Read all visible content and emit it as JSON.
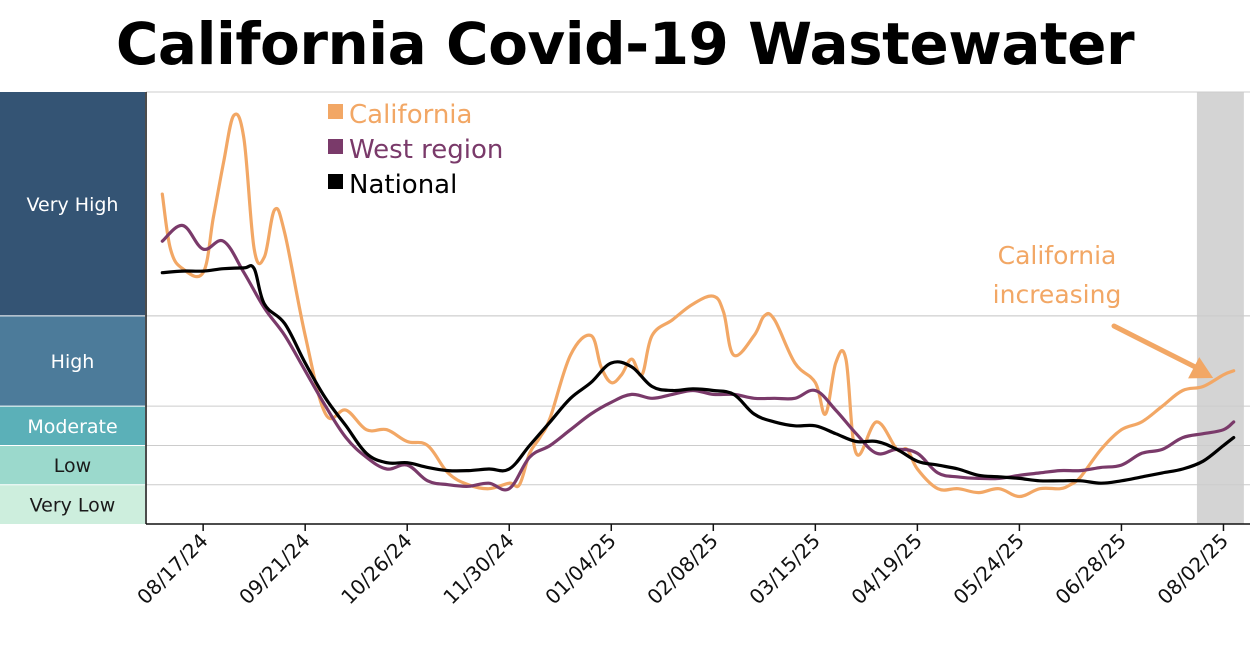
{
  "chart_data": {
    "type": "line",
    "title": "California Covid-19 Wastewater",
    "xlabel": "",
    "ylabel": "",
    "ylim": [
      0,
      5.5
    ],
    "x_tick_labels": [
      "08/17/24",
      "09/21/24",
      "10/26/24",
      "11/30/24",
      "01/04/25",
      "02/08/25",
      "03/15/25",
      "04/19/25",
      "05/24/25",
      "06/28/25",
      "08/02/25"
    ],
    "x_tick_weeks": [
      0,
      5,
      10,
      15,
      20,
      25,
      30,
      35,
      40,
      45,
      50
    ],
    "x_range_weeks": [
      -2.8,
      51.3
    ],
    "levels": [
      {
        "name": "Very Low",
        "from": 0,
        "to": 0.5,
        "color": "#cdeedd",
        "text_color": "#1a1a1a"
      },
      {
        "name": "Low",
        "from": 0.5,
        "to": 1.0,
        "color": "#9bd9cc",
        "text_color": "#1a1a1a"
      },
      {
        "name": "Moderate",
        "from": 1.0,
        "to": 1.5,
        "color": "#5bb0b8",
        "text_color": "#ffffff"
      },
      {
        "name": "High",
        "from": 1.5,
        "to": 2.65,
        "color": "#4c7b9a",
        "text_color": "#ffffff"
      },
      {
        "name": "Very High",
        "from": 2.65,
        "to": 5.5,
        "color": "#345474",
        "text_color": "#ffffff"
      }
    ],
    "series": [
      {
        "name": "California",
        "color": "#f2a765",
        "width": 3.2,
        "x": [
          -2,
          -1.6,
          -1,
          0,
          0.5,
          1,
          1.5,
          2,
          2.5,
          3,
          3.5,
          4,
          5,
          6,
          7,
          8,
          9,
          10,
          11,
          12,
          13,
          14,
          15,
          15.5,
          16,
          16.5,
          17,
          18,
          19,
          19.5,
          20,
          20.5,
          21,
          21.5,
          22,
          23,
          24,
          25,
          25.5,
          26,
          27,
          27.5,
          28,
          29,
          30,
          30.5,
          31,
          31.5,
          32,
          33,
          34,
          34.5,
          35,
          36,
          37,
          38,
          39,
          40,
          41,
          42,
          42.5,
          43,
          44,
          45,
          46,
          47,
          48,
          49,
          50,
          50.5
        ],
        "y": [
          4.2,
          3.5,
          3.25,
          3.2,
          3.9,
          4.6,
          5.2,
          4.9,
          3.5,
          3.4,
          4.0,
          3.7,
          2.4,
          1.4,
          1.45,
          1.2,
          1.2,
          1.05,
          1.0,
          0.65,
          0.5,
          0.45,
          0.52,
          0.5,
          0.9,
          1.1,
          1.35,
          2.15,
          2.4,
          2.0,
          1.8,
          1.9,
          2.1,
          1.9,
          2.4,
          2.6,
          2.8,
          2.9,
          2.7,
          2.15,
          2.4,
          2.65,
          2.6,
          2.05,
          1.8,
          1.4,
          2.05,
          2.1,
          0.9,
          1.3,
          0.95,
          0.95,
          0.7,
          0.45,
          0.45,
          0.4,
          0.45,
          0.35,
          0.45,
          0.45,
          0.5,
          0.6,
          0.95,
          1.2,
          1.3,
          1.5,
          1.7,
          1.75,
          1.9,
          1.95
        ]
      },
      {
        "name": "West region",
        "color": "#7a3a6a",
        "width": 3.2,
        "x": [
          -2,
          -1,
          0,
          1,
          2,
          3,
          4,
          5,
          6,
          7,
          8,
          9,
          10,
          11,
          12,
          13,
          14,
          15,
          16,
          17,
          18,
          19,
          20,
          21,
          22,
          23,
          24,
          25,
          26,
          27,
          28,
          29,
          30,
          31,
          32,
          33,
          34,
          35,
          36,
          37,
          38,
          39,
          40,
          41,
          42,
          43,
          44,
          45,
          46,
          47,
          48,
          49,
          50,
          50.5
        ],
        "y": [
          3.6,
          3.8,
          3.5,
          3.6,
          3.2,
          2.75,
          2.4,
          1.95,
          1.5,
          1.1,
          0.85,
          0.7,
          0.75,
          0.55,
          0.5,
          0.48,
          0.52,
          0.45,
          0.85,
          1.0,
          1.2,
          1.4,
          1.55,
          1.65,
          1.6,
          1.65,
          1.7,
          1.65,
          1.65,
          1.6,
          1.6,
          1.6,
          1.7,
          1.45,
          1.15,
          0.9,
          0.95,
          0.9,
          0.65,
          0.6,
          0.58,
          0.58,
          0.62,
          0.65,
          0.68,
          0.68,
          0.72,
          0.75,
          0.9,
          0.95,
          1.1,
          1.15,
          1.2,
          1.3
        ]
      },
      {
        "name": "National",
        "color": "#000000",
        "width": 3.2,
        "x": [
          -2,
          -1,
          0,
          1,
          2,
          2.5,
          3,
          4,
          5,
          6,
          7,
          8,
          9,
          10,
          11,
          12,
          13,
          14,
          15,
          16,
          17,
          18,
          19,
          20,
          21,
          22,
          23,
          24,
          25,
          26,
          27,
          28,
          29,
          30,
          31,
          32,
          33,
          34,
          35,
          36,
          37,
          38,
          39,
          40,
          41,
          42,
          43,
          44,
          45,
          46,
          47,
          48,
          49,
          50,
          50.5
        ],
        "y": [
          3.2,
          3.22,
          3.22,
          3.25,
          3.26,
          3.25,
          2.8,
          2.55,
          2.05,
          1.6,
          1.25,
          0.9,
          0.78,
          0.78,
          0.72,
          0.68,
          0.68,
          0.7,
          0.7,
          1.0,
          1.3,
          1.6,
          1.8,
          2.05,
          2.0,
          1.75,
          1.7,
          1.72,
          1.7,
          1.65,
          1.4,
          1.3,
          1.25,
          1.25,
          1.15,
          1.05,
          1.05,
          0.95,
          0.8,
          0.75,
          0.7,
          0.62,
          0.6,
          0.58,
          0.55,
          0.55,
          0.55,
          0.52,
          0.55,
          0.6,
          0.65,
          0.7,
          0.8,
          1.0,
          1.1
        ]
      }
    ],
    "legend": {
      "position": "top-left",
      "entries": [
        {
          "label": "California",
          "color": "#f2a765"
        },
        {
          "label": "West region",
          "color": "#7a3a6a"
        },
        {
          "label": "National",
          "color": "#000000"
        }
      ]
    },
    "highlight_band": {
      "from_week": 48.7,
      "to_week": 51.0,
      "color": "#d4d4d4"
    },
    "annotation": {
      "lines": [
        "California",
        "increasing"
      ],
      "color": "#f2a765",
      "points_to_week": 49.2
    }
  }
}
